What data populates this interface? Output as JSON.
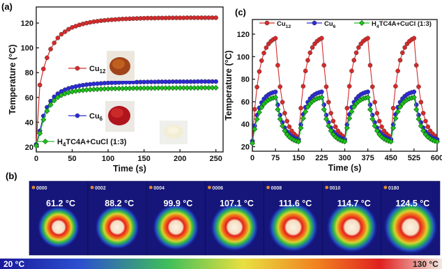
{
  "chart_data": [
    {
      "panel": "(a)",
      "type": "line",
      "xlabel": "Time (s)",
      "ylabel": "Temperature (°C)",
      "xlim": [
        0,
        260
      ],
      "ylim": [
        16,
        133
      ],
      "xticks": [
        0,
        50,
        100,
        150,
        200,
        250
      ],
      "yticks": [
        20,
        40,
        60,
        80,
        100,
        120
      ],
      "series": [
        {
          "name": "Cu12",
          "label_main": "Cu",
          "label_sub": "12",
          "color": "#d42a2a",
          "x": [
            0,
            5,
            10,
            15,
            20,
            25,
            30,
            35,
            40,
            45,
            50,
            55,
            60,
            65,
            70,
            75,
            80,
            85,
            90,
            95,
            100,
            105,
            110,
            115,
            120,
            125,
            130,
            135,
            140,
            145,
            150,
            155,
            160,
            165,
            170,
            175,
            180,
            185,
            190,
            195,
            200,
            205,
            210,
            215,
            220,
            225,
            230,
            235,
            240,
            245,
            250
          ],
          "y": [
            22,
            70,
            83,
            92,
            99,
            104,
            108,
            111,
            113,
            115,
            116.5,
            117.5,
            118.5,
            119.3,
            120,
            120.6,
            121.1,
            121.5,
            121.9,
            122.2,
            122.5,
            122.7,
            122.9,
            123.1,
            123.3,
            123.4,
            123.5,
            123.6,
            123.7,
            123.8,
            123.9,
            124,
            124,
            124,
            124.1,
            124.1,
            124.1,
            124.2,
            124.2,
            124.2,
            124.2,
            124.2,
            124.3,
            124.3,
            124.3,
            124.3,
            124.3,
            124.3,
            124.3,
            124.3,
            124.3
          ]
        },
        {
          "name": "Cu6",
          "label_main": "Cu",
          "label_sub": "6",
          "color": "#2a2ad4",
          "x": [
            0,
            5,
            10,
            15,
            20,
            25,
            30,
            35,
            40,
            45,
            50,
            55,
            60,
            65,
            70,
            75,
            80,
            85,
            90,
            95,
            100,
            105,
            110,
            115,
            120,
            125,
            130,
            135,
            140,
            145,
            150,
            155,
            160,
            165,
            170,
            175,
            180,
            185,
            190,
            195,
            200,
            205,
            210,
            215,
            220,
            225,
            230,
            235,
            240,
            245,
            250
          ],
          "y": [
            22,
            33,
            45,
            52,
            57,
            60.5,
            63,
            64.8,
            66.2,
            67.3,
            68.1,
            68.8,
            69.4,
            69.9,
            70.3,
            70.6,
            70.9,
            71.1,
            71.3,
            71.5,
            71.7,
            71.8,
            71.9,
            72,
            72.1,
            72.2,
            72.2,
            72.3,
            72.3,
            72.4,
            72.4,
            72.5,
            72.5,
            72.5,
            72.6,
            72.6,
            72.6,
            72.6,
            72.7,
            72.7,
            72.7,
            72.7,
            72.7,
            72.7,
            72.7,
            72.8,
            72.8,
            72.8,
            72.8,
            72.8,
            72.8
          ]
        },
        {
          "name": "H4TC4A+CuCl (1:3)",
          "label_main": "H",
          "label_sub": "4",
          "label_rest": "TC4A+CuCl (1:3)",
          "color": "#1fc21f",
          "x": [
            0,
            5,
            10,
            15,
            20,
            25,
            30,
            35,
            40,
            45,
            50,
            55,
            60,
            65,
            70,
            75,
            80,
            85,
            90,
            95,
            100,
            105,
            110,
            115,
            120,
            125,
            130,
            135,
            140,
            145,
            150,
            155,
            160,
            165,
            170,
            175,
            180,
            185,
            190,
            195,
            200,
            205,
            210,
            215,
            220,
            225,
            230,
            235,
            240,
            245,
            250
          ],
          "y": [
            21,
            31,
            42,
            49,
            54,
            57.5,
            60,
            61.8,
            63,
            63.9,
            64.6,
            65.1,
            65.5,
            65.8,
            66.1,
            66.3,
            66.5,
            66.6,
            66.8,
            66.9,
            67,
            67.1,
            67.1,
            67.2,
            67.2,
            67.3,
            67.3,
            67.4,
            67.4,
            67.4,
            67.5,
            67.5,
            67.5,
            67.5,
            67.6,
            67.6,
            67.6,
            67.6,
            67.6,
            67.7,
            67.7,
            67.7,
            67.7,
            67.7,
            67.7,
            67.7,
            67.8,
            67.8,
            67.8,
            67.8,
            67.8
          ]
        }
      ]
    },
    {
      "panel": "(c)",
      "type": "line",
      "xlabel": "Time (s)",
      "ylabel": "Temperature (°C)",
      "xlim": [
        0,
        600
      ],
      "ylim": [
        16,
        133
      ],
      "xticks": [
        0,
        75,
        150,
        225,
        300,
        375,
        450,
        525,
        600
      ],
      "yticks": [
        20,
        40,
        60,
        80,
        100,
        120
      ],
      "cycles": 4,
      "cycle_period_s": 150,
      "heating_s": 75,
      "series": [
        {
          "name": "Cu12",
          "label_main": "Cu",
          "label_sub": "12",
          "color": "#d42a2a",
          "peak": 119,
          "base": 25
        },
        {
          "name": "Cu6",
          "label_main": "Cu",
          "label_sub": "6",
          "color": "#2a2ad4",
          "peak": 70,
          "base": 25
        },
        {
          "name": "H4TC4A+CuCl (1:3)",
          "label_main": "H",
          "label_sub": "4",
          "label_rest": "TC4A+CuCl (1:3)",
          "color": "#1fc21f",
          "peak": 65,
          "base": 23
        }
      ]
    }
  ],
  "panels": {
    "a": "(a)",
    "b": "(b)",
    "c": "(c)"
  },
  "thermal": {
    "frames": [
      {
        "id": "0000",
        "temp": "61.2 °C"
      },
      {
        "id": "0002",
        "temp": "88.2 °C"
      },
      {
        "id": "0004",
        "temp": "99.9 °C"
      },
      {
        "id": "0006",
        "temp": "107.1 °C"
      },
      {
        "id": "0008",
        "temp": "111.6 °C"
      },
      {
        "id": "0010",
        "temp": "114.7 °C"
      },
      {
        "id": "0180",
        "temp": "124.5 °C"
      }
    ],
    "scale_min": "20 °C",
    "scale_max": "130 °C"
  }
}
